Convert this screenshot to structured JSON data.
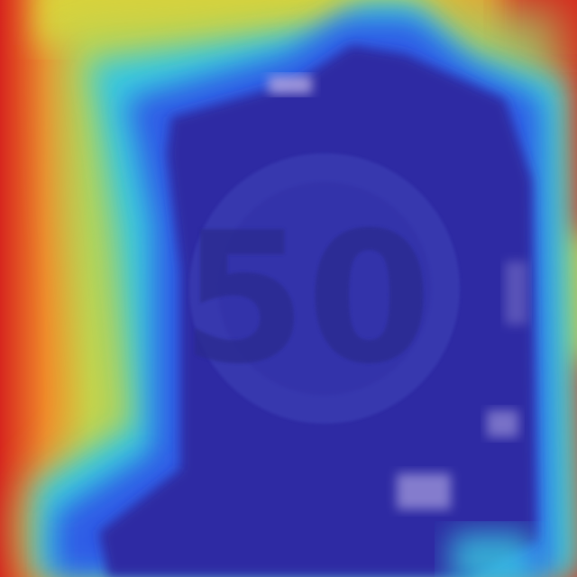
{
  "image": {
    "sign_text": "50",
    "colors": {
      "heat_red": "#d7261e",
      "heat_orange": "#f08a2a",
      "heat_yellow": "#d9d23a",
      "heat_green": "#9fd36a",
      "heat_cyan": "#38c9e0",
      "heat_blue": "#2f5ce6",
      "heat_deep_blue": "#2e2aa3",
      "sign_shade": "#3a3cb2",
      "text_shade": "#2b2a8f",
      "highlight": "#a9a0e0"
    }
  }
}
